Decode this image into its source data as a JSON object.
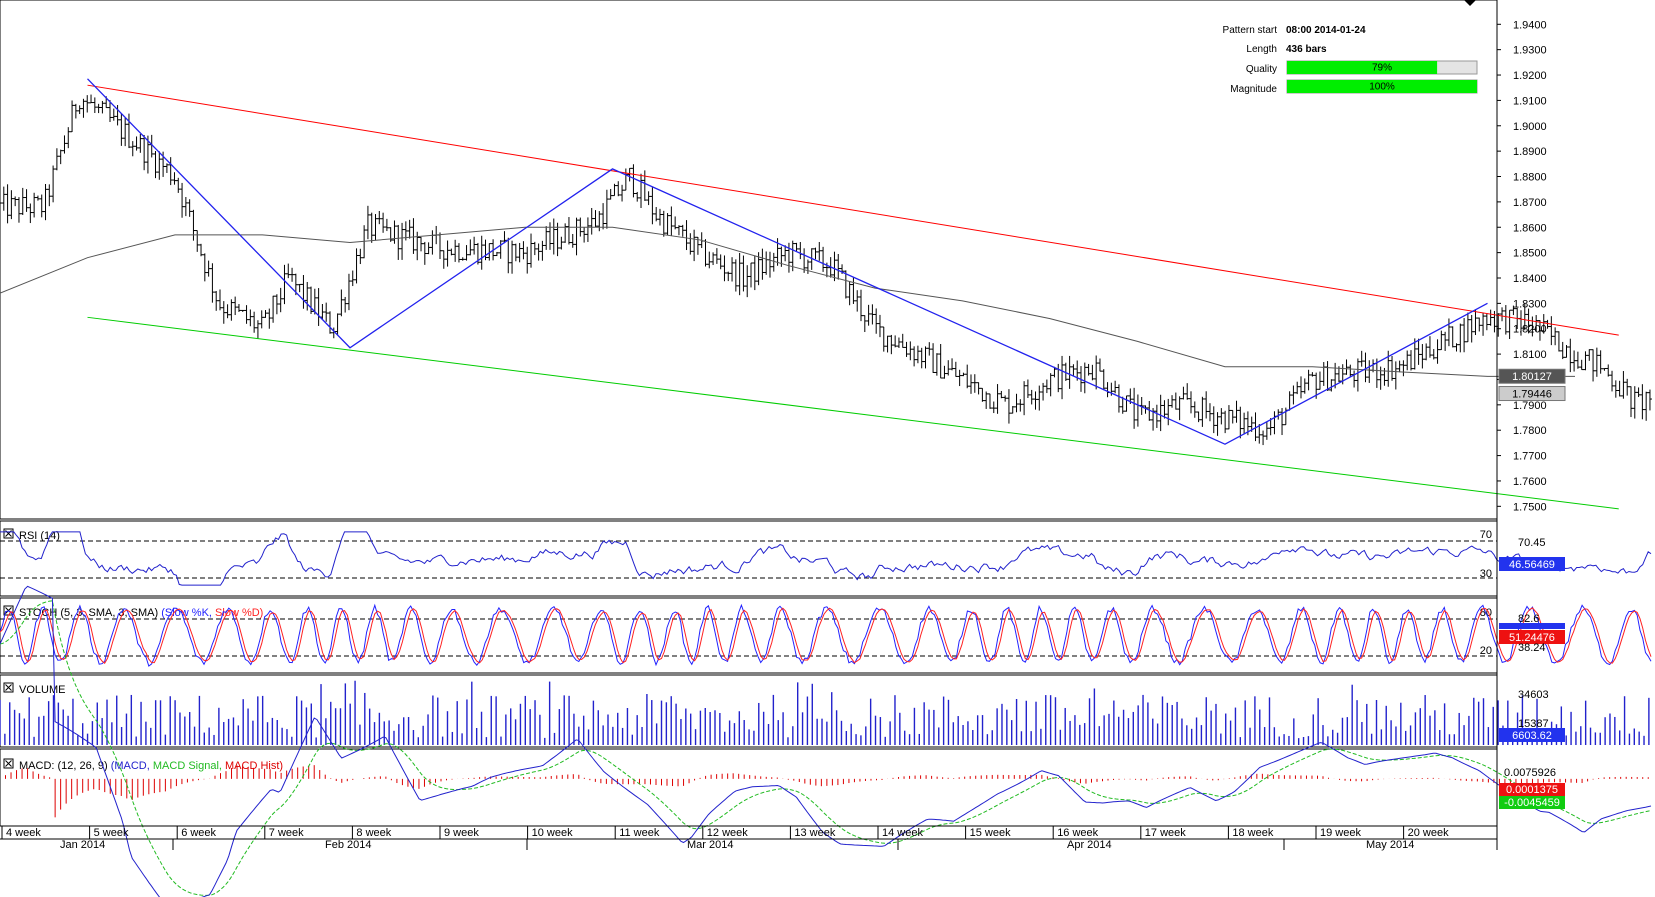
{
  "pattern_info": {
    "pattern_start_label": "Pattern start",
    "pattern_start_value": "08:00 2014-01-24",
    "length_label": "Length",
    "length_value": "436 bars",
    "quality_label": "Quality",
    "quality_value": "79%",
    "quality_fraction": 0.79,
    "magnitude_label": "Magnitude",
    "magnitude_value": "100%",
    "magnitude_fraction": 1.0
  },
  "colors": {
    "resistance_line": "#ff0000",
    "support_line": "#00cc00",
    "zigzag": "#2222ee",
    "moving_average": "#555555",
    "quality_fill": "#00ee00",
    "rsi_line": "#2222cc",
    "stoch_k": "#2222ff",
    "stoch_d": "#ff2222",
    "volume_bars": "#2222cc",
    "macd_line": "#2222cc",
    "macd_signal": "#22bb22",
    "macd_hist": "#dd0000"
  },
  "chart_data": [
    {
      "panel": "price",
      "type": "bar",
      "ylim": [
        1.745,
        1.948
      ],
      "y_ticks": [
        "1.7500",
        "1.7600",
        "1.7700",
        "1.7800",
        "1.7900",
        "1.8000",
        "1.8100",
        "1.8200",
        "1.8300",
        "1.8400",
        "1.8500",
        "1.8600",
        "1.8700",
        "1.8800",
        "1.8900",
        "1.9000",
        "1.9100",
        "1.9200",
        "1.9300",
        "1.9400"
      ],
      "price_tags": [
        {
          "label": "1.80127",
          "value": 1.80127,
          "color": "#555555"
        },
        {
          "label": "1.79446",
          "value": 1.79446,
          "color": "#cccccc"
        }
      ],
      "zigzag_points": [
        [
          1,
          1.9185
        ],
        [
          4,
          1.8125
        ],
        [
          7,
          1.883
        ],
        [
          14,
          1.7745
        ],
        [
          17,
          1.83
        ]
      ],
      "resistance_line": [
        [
          1,
          1.916
        ],
        [
          18.5,
          1.8175
        ]
      ],
      "support_line": [
        [
          1,
          1.8245
        ],
        [
          18.5,
          1.749
        ]
      ],
      "moving_average": [
        [
          0,
          1.834
        ],
        [
          1,
          1.848
        ],
        [
          2,
          1.857
        ],
        [
          3,
          1.857
        ],
        [
          4,
          1.854
        ],
        [
          5,
          1.857
        ],
        [
          6,
          1.86
        ],
        [
          7,
          1.86
        ],
        [
          8,
          1.855
        ],
        [
          9,
          1.845
        ],
        [
          10,
          1.836
        ],
        [
          11,
          1.831
        ],
        [
          12,
          1.824
        ],
        [
          13,
          1.815
        ],
        [
          14,
          1.805
        ],
        [
          15,
          1.805
        ],
        [
          16,
          1.803
        ],
        [
          17,
          1.8012
        ],
        [
          18,
          1.8012
        ]
      ],
      "price_path": [
        [
          0,
          1.868
        ],
        [
          0.5,
          1.868
        ],
        [
          0.9,
          1.912
        ],
        [
          1.5,
          1.895
        ],
        [
          2,
          1.88
        ],
        [
          2.5,
          1.83
        ],
        [
          3,
          1.82
        ],
        [
          3.3,
          1.84
        ],
        [
          3.8,
          1.82
        ],
        [
          4.2,
          1.86
        ],
        [
          5,
          1.852
        ],
        [
          6,
          1.85
        ],
        [
          6.8,
          1.862
        ],
        [
          7.2,
          1.88
        ],
        [
          7.5,
          1.865
        ],
        [
          8,
          1.85
        ],
        [
          8.5,
          1.84
        ],
        [
          9,
          1.85
        ],
        [
          9.5,
          1.845
        ],
        [
          10,
          1.82
        ],
        [
          11,
          1.8
        ],
        [
          11.5,
          1.79
        ],
        [
          12,
          1.8
        ],
        [
          12.5,
          1.805
        ],
        [
          13,
          1.785
        ],
        [
          13.5,
          1.79
        ],
        [
          14,
          1.785
        ],
        [
          14.5,
          1.78
        ],
        [
          15,
          1.8
        ],
        [
          16,
          1.805
        ],
        [
          16.5,
          1.815
        ],
        [
          17,
          1.825
        ],
        [
          17.5,
          1.822
        ],
        [
          18,
          1.81
        ],
        [
          18.3,
          1.805
        ],
        [
          18.7,
          1.79
        ],
        [
          18.9,
          1.7945
        ]
      ]
    },
    {
      "panel": "rsi",
      "type": "line",
      "title": "RSI (14)",
      "levels": [
        "70",
        "30"
      ],
      "y_ticks": [
        "70.45"
      ],
      "value_tag": "46.56469",
      "ylim": [
        10,
        90
      ],
      "level_values": [
        70,
        30
      ]
    },
    {
      "panel": "stoch",
      "type": "line",
      "title_prefix": "STOCH (5, 3, SMA, 3, SMA)",
      "series_k": "(Slow %K,",
      "series_d": "Slow %D)",
      "levels": [
        "80",
        "20"
      ],
      "y_ticks": [
        "82.6",
        "38.24"
      ],
      "value_tag": "51.24476",
      "ylim": [
        0,
        100
      ],
      "level_values": [
        80,
        20
      ]
    },
    {
      "panel": "volume",
      "type": "bar",
      "title": "VOLUME",
      "y_ticks": [
        "34603",
        "15387"
      ],
      "value_tag": "6603.62",
      "ylim": [
        0,
        40000
      ]
    },
    {
      "panel": "macd",
      "type": "line",
      "title_prefix": "MACD: (12, 26, 9)",
      "series_macd": "(MACD,",
      "series_signal": "MACD Signal,",
      "series_hist": "MACD Hist)",
      "y_ticks": [
        "0.0075926"
      ],
      "value_tags": [
        "0.0001375",
        "-0.0045459"
      ],
      "ylim": [
        -0.012,
        0.01
      ]
    }
  ],
  "x_axis": {
    "week_labels": [
      "4 week",
      "5 week",
      "6 week",
      "7 week",
      "8 week",
      "9 week",
      "10 week",
      "11 week",
      "12 week",
      "13 week",
      "14 week",
      "15 week",
      "16 week",
      "17 week",
      "18 week",
      "19 week",
      "20 week"
    ],
    "month_labels": [
      "Jan 2014",
      "Feb 2014",
      "Mar 2014",
      "Apr 2014",
      "May 2014"
    ]
  }
}
